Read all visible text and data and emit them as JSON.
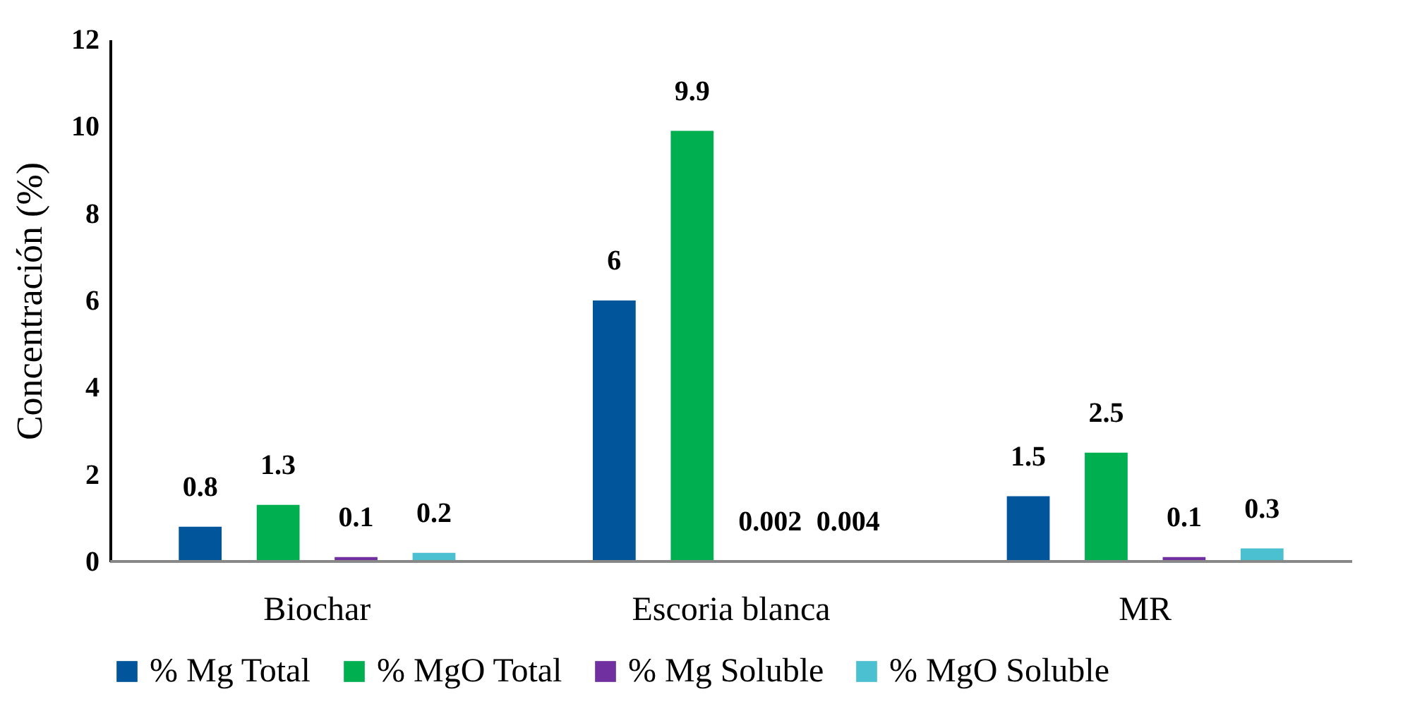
{
  "chart_data": {
    "type": "bar",
    "ylabel": "Concentración (%)",
    "categories": [
      "Biochar",
      "Escoria blanca",
      "MR"
    ],
    "series": [
      {
        "name": "% Mg Total",
        "color": "#00559b",
        "values": [
          0.8,
          6,
          1.5
        ]
      },
      {
        "name": "% MgO Total",
        "color": "#00b050",
        "values": [
          1.3,
          9.9,
          2.5
        ]
      },
      {
        "name": "% Mg Soluble",
        "color": "#7030a0",
        "values": [
          0.1,
          0.002,
          0.1
        ]
      },
      {
        "name": "% MgO Soluble",
        "color": "#4bc0d0",
        "values": [
          0.2,
          0.004,
          0.3
        ]
      }
    ],
    "ylim": [
      0,
      12
    ],
    "yticks": [
      0,
      2,
      4,
      6,
      8,
      10,
      12
    ],
    "data_labels": true,
    "legend": "bottom"
  }
}
